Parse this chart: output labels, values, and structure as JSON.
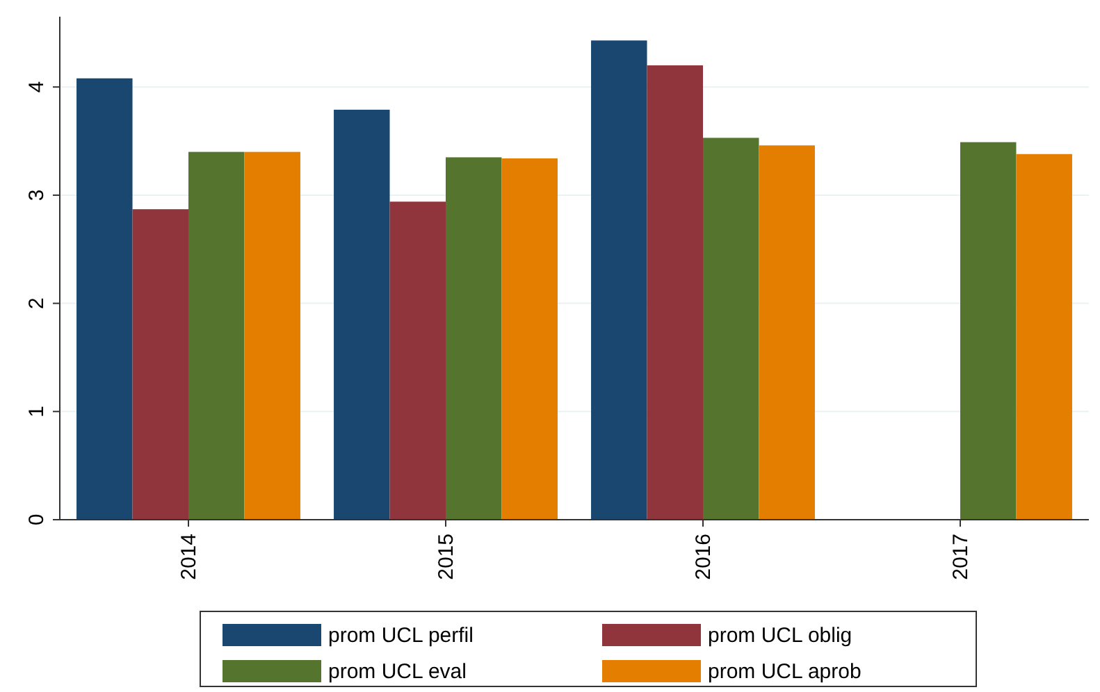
{
  "chart_data": {
    "type": "bar",
    "categories": [
      "2014",
      "2015",
      "2016",
      "2017"
    ],
    "series": [
      {
        "name": "prom UCL perfil",
        "color": "#1a476f",
        "values": [
          4.08,
          3.79,
          4.43,
          null
        ]
      },
      {
        "name": "prom UCL oblig",
        "color": "#90353b",
        "values": [
          2.87,
          2.94,
          4.2,
          null
        ]
      },
      {
        "name": "prom UCL eval",
        "color": "#55752f",
        "values": [
          3.4,
          3.35,
          3.53,
          3.49
        ]
      },
      {
        "name": "prom UCL aprob",
        "color": "#e37e00",
        "values": [
          3.4,
          3.34,
          3.46,
          3.38
        ]
      }
    ],
    "ylim": [
      0,
      4.65
    ],
    "yticks": [
      0,
      1,
      2,
      3,
      4
    ],
    "grid": "y",
    "legend": "bottom"
  }
}
